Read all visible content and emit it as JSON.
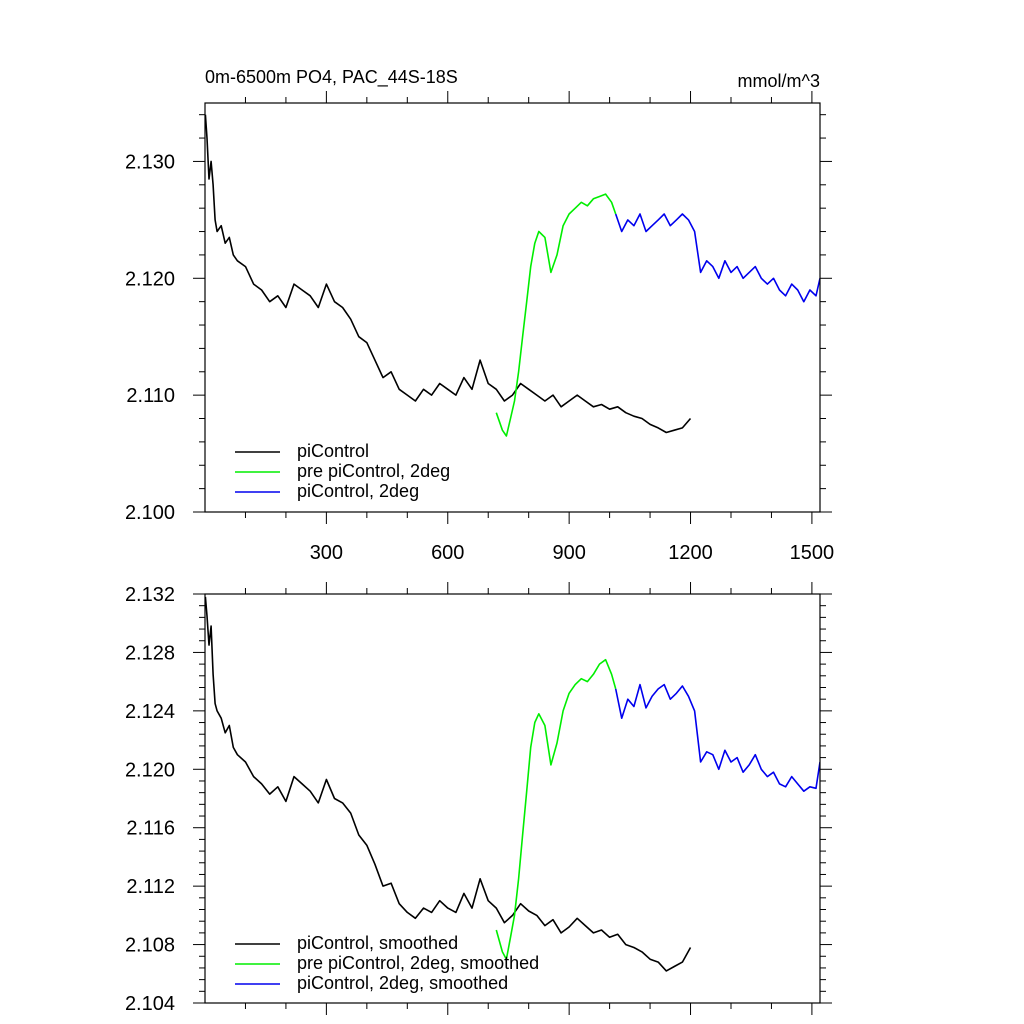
{
  "chart_data": [
    {
      "type": "line",
      "title": "0m-6500m PO4, PAC_44S-18S",
      "units": "mmol/m^3",
      "xlabel": "",
      "ylabel": "",
      "xlim": [
        0,
        1520
      ],
      "ylim": [
        2.1,
        2.135
      ],
      "xticks": [
        300,
        600,
        900,
        1200,
        1500
      ],
      "xtick_labels": [
        "300",
        "600",
        "900",
        "1200",
        "1500"
      ],
      "yticks": [
        2.1,
        2.11,
        2.12,
        2.13
      ],
      "ytick_labels": [
        "2.100",
        "2.110",
        "2.120",
        "2.130"
      ],
      "grid": false,
      "legend_position": "bottom-left",
      "series": [
        {
          "name": "piControl",
          "color": "#000000",
          "x": [
            1,
            5,
            10,
            15,
            20,
            25,
            30,
            40,
            50,
            60,
            70,
            80,
            100,
            120,
            140,
            160,
            180,
            200,
            220,
            240,
            260,
            280,
            300,
            320,
            340,
            360,
            380,
            400,
            420,
            440,
            460,
            480,
            500,
            520,
            540,
            560,
            580,
            600,
            620,
            640,
            660,
            680,
            700,
            720,
            740,
            760,
            780,
            800,
            820,
            840,
            860,
            880,
            900,
            920,
            940,
            960,
            980,
            1000,
            1020,
            1040,
            1060,
            1080,
            1100,
            1120,
            1140,
            1160,
            1180,
            1200
          ],
          "y": [
            2.134,
            2.132,
            2.1285,
            2.13,
            2.128,
            2.125,
            2.124,
            2.1245,
            2.123,
            2.1235,
            2.122,
            2.1215,
            2.121,
            2.1195,
            2.119,
            2.118,
            2.1185,
            2.1175,
            2.1195,
            2.119,
            2.1185,
            2.1175,
            2.1195,
            2.118,
            2.1175,
            2.1165,
            2.115,
            2.1145,
            2.113,
            2.1115,
            2.112,
            2.1105,
            2.11,
            2.1095,
            2.1105,
            2.11,
            2.111,
            2.1105,
            2.11,
            2.1115,
            2.1105,
            2.113,
            2.111,
            2.1105,
            2.1095,
            2.11,
            2.111,
            2.1105,
            2.11,
            2.1095,
            2.11,
            2.109,
            2.1095,
            2.11,
            2.1095,
            2.109,
            2.1092,
            2.1088,
            2.109,
            2.1085,
            2.1082,
            2.108,
            2.1075,
            2.1072,
            2.1068,
            2.107,
            2.1072,
            2.108
          ]
        },
        {
          "name": "pre piControl, 2deg",
          "color": "#00ee00",
          "x": [
            720,
            735,
            745,
            755,
            765,
            775,
            785,
            795,
            805,
            815,
            825,
            840,
            855,
            870,
            885,
            900,
            915,
            930,
            945,
            960,
            975,
            990,
            1005,
            1015
          ],
          "y": [
            2.1085,
            2.107,
            2.1065,
            2.108,
            2.1095,
            2.112,
            2.115,
            2.118,
            2.121,
            2.123,
            2.124,
            2.1235,
            2.1205,
            2.122,
            2.1245,
            2.1255,
            2.126,
            2.1265,
            2.1262,
            2.1268,
            2.127,
            2.1272,
            2.1265,
            2.1255
          ]
        },
        {
          "name": "piControl, 2deg",
          "color": "#0000ee",
          "x": [
            1015,
            1030,
            1045,
            1060,
            1075,
            1090,
            1105,
            1120,
            1135,
            1150,
            1165,
            1180,
            1195,
            1210,
            1225,
            1240,
            1255,
            1270,
            1285,
            1300,
            1315,
            1330,
            1345,
            1360,
            1375,
            1390,
            1405,
            1420,
            1435,
            1450,
            1465,
            1480,
            1495,
            1510,
            1520
          ],
          "y": [
            2.1255,
            2.124,
            2.125,
            2.1245,
            2.1255,
            2.124,
            2.1245,
            2.125,
            2.1255,
            2.1245,
            2.125,
            2.1255,
            2.125,
            2.124,
            2.1205,
            2.1215,
            2.121,
            2.12,
            2.1215,
            2.1205,
            2.121,
            2.12,
            2.1205,
            2.121,
            2.12,
            2.1195,
            2.12,
            2.119,
            2.1185,
            2.1195,
            2.119,
            2.118,
            2.119,
            2.1185,
            2.12
          ]
        }
      ]
    },
    {
      "type": "line",
      "title": "",
      "units": "",
      "xlabel": "",
      "ylabel": "",
      "xlim": [
        0,
        1520
      ],
      "ylim": [
        2.104,
        2.132
      ],
      "xticks": [
        300,
        600,
        900,
        1200,
        1500
      ],
      "xtick_labels": [],
      "yticks": [
        2.104,
        2.108,
        2.112,
        2.116,
        2.12,
        2.124,
        2.128,
        2.132
      ],
      "ytick_labels": [
        "2.104",
        "2.108",
        "2.112",
        "2.116",
        "2.120",
        "2.124",
        "2.128",
        "2.132"
      ],
      "grid": false,
      "legend_position": "bottom-left",
      "series": [
        {
          "name": "piControl, smoothed",
          "color": "#000000",
          "x": [
            1,
            5,
            10,
            15,
            20,
            25,
            30,
            40,
            50,
            60,
            70,
            80,
            100,
            120,
            140,
            160,
            180,
            200,
            220,
            240,
            260,
            280,
            300,
            320,
            340,
            360,
            380,
            400,
            420,
            440,
            460,
            480,
            500,
            520,
            540,
            560,
            580,
            600,
            620,
            640,
            660,
            680,
            700,
            720,
            740,
            760,
            780,
            800,
            820,
            840,
            860,
            880,
            900,
            920,
            940,
            960,
            980,
            1000,
            1020,
            1040,
            1060,
            1080,
            1100,
            1120,
            1140,
            1160,
            1180,
            1200
          ],
          "y": [
            2.1318,
            2.1305,
            2.1285,
            2.1298,
            2.1265,
            2.1245,
            2.124,
            2.1235,
            2.1225,
            2.123,
            2.1215,
            2.121,
            2.1205,
            2.1195,
            2.119,
            2.1183,
            2.1188,
            2.1178,
            2.1195,
            2.119,
            2.1185,
            2.1177,
            2.1193,
            2.118,
            2.1177,
            2.117,
            2.1155,
            2.1148,
            2.1135,
            2.112,
            2.1122,
            2.1108,
            2.1102,
            2.1098,
            2.1105,
            2.1102,
            2.111,
            2.1105,
            2.1102,
            2.1115,
            2.1105,
            2.1125,
            2.111,
            2.1105,
            2.1095,
            2.11,
            2.1108,
            2.1103,
            2.11,
            2.1093,
            2.1097,
            2.1088,
            2.1092,
            2.1098,
            2.1093,
            2.1088,
            2.109,
            2.1085,
            2.1087,
            2.108,
            2.1078,
            2.1075,
            2.107,
            2.1068,
            2.1062,
            2.1065,
            2.1068,
            2.1078
          ]
        },
        {
          "name": "pre piControl, 2deg, smoothed",
          "color": "#00ee00",
          "x": [
            720,
            735,
            745,
            755,
            765,
            775,
            785,
            795,
            805,
            815,
            825,
            840,
            855,
            870,
            885,
            900,
            915,
            930,
            945,
            960,
            975,
            990,
            1005,
            1015
          ],
          "y": [
            2.109,
            2.1075,
            2.107,
            2.1085,
            2.11,
            2.1125,
            2.1155,
            2.1185,
            2.1215,
            2.1232,
            2.1238,
            2.123,
            2.1203,
            2.1218,
            2.124,
            2.1252,
            2.1258,
            2.1262,
            2.126,
            2.1265,
            2.1272,
            2.1275,
            2.1265,
            2.1255
          ]
        },
        {
          "name": "piControl, 2deg, smoothed",
          "color": "#0000ee",
          "x": [
            1015,
            1030,
            1045,
            1060,
            1075,
            1090,
            1105,
            1120,
            1135,
            1150,
            1165,
            1180,
            1195,
            1210,
            1225,
            1240,
            1255,
            1270,
            1285,
            1300,
            1315,
            1330,
            1345,
            1360,
            1375,
            1390,
            1405,
            1420,
            1435,
            1450,
            1465,
            1480,
            1495,
            1510,
            1520
          ],
          "y": [
            2.1255,
            2.1235,
            2.1248,
            2.1243,
            2.1258,
            2.1242,
            2.125,
            2.1255,
            2.1258,
            2.1248,
            2.1252,
            2.1257,
            2.125,
            2.124,
            2.1205,
            2.1212,
            2.121,
            2.12,
            2.1213,
            2.1205,
            2.1208,
            2.1198,
            2.1203,
            2.121,
            2.12,
            2.1195,
            2.1198,
            2.119,
            2.1188,
            2.1195,
            2.119,
            2.1185,
            2.1188,
            2.1187,
            2.1205
          ]
        }
      ]
    }
  ]
}
